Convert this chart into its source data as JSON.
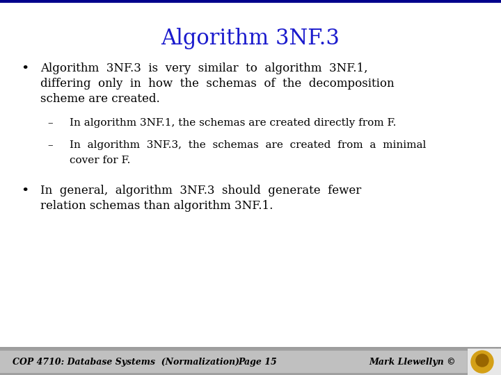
{
  "title": "Algorithm 3NF.3",
  "title_color": "#1a1acd",
  "title_fontsize": 22,
  "title_font": "DejaVu Serif",
  "bg_color": "#FFFFFF",
  "bullet1_text_lines": [
    "Algorithm  3NF.3  is  very  similar  to  algorithm  3NF.1,",
    "differing  only  in  how  the  schemas  of  the  decomposition",
    "scheme are created."
  ],
  "sub1_text": "In algorithm 3NF.1, the schemas are created directly from F.",
  "sub2_lines": [
    "In  algorithm  3NF.3,  the  schemas  are  created  from  a  minimal",
    "cover for F."
  ],
  "bullet2_text_lines": [
    "In  general,  algorithm  3NF.3  should  generate  fewer",
    "relation schemas than algorithm 3NF.1."
  ],
  "footer_left": "COP 4710: Database Systems  (Normalization)",
  "footer_center": "Page 15",
  "footer_right": "Mark Llewellyn ©",
  "footer_bg_top": "#B0B0B0",
  "footer_bg": "#C8C8C8",
  "footer_fontsize": 9,
  "body_fontsize": 12,
  "sub_fontsize": 11,
  "body_color": "#000000",
  "body_font": "DejaVu Serif",
  "border_top_color": "#00008B",
  "logo_outer_color": "#D4A017",
  "logo_inner_color": "#996600"
}
